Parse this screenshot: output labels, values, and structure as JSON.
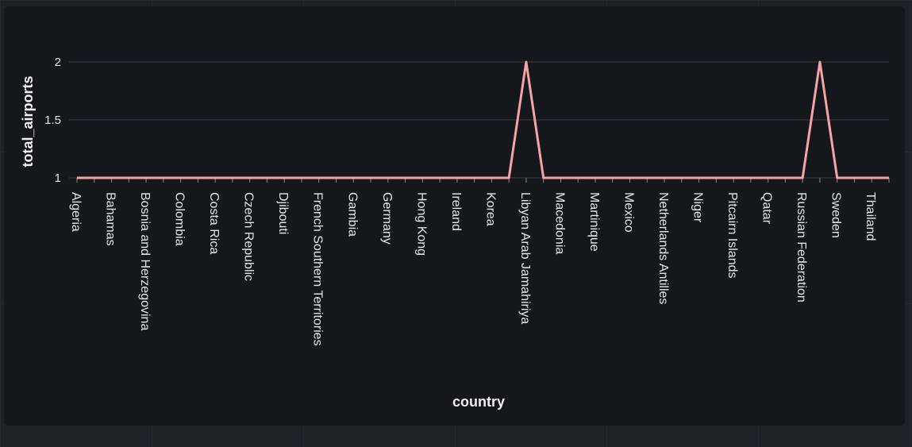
{
  "chart_data": {
    "type": "line",
    "xlabel": "country",
    "ylabel": "total_airports",
    "ylim": [
      1,
      2
    ],
    "y_ticks": [
      "1",
      "1.5",
      "2"
    ],
    "grid": true,
    "legend": "none",
    "line_color": "#f4a3a5",
    "categories": [
      "Algeria",
      "",
      "Bahamas",
      "",
      "Bosnia and Herzegovina",
      "",
      "Colombia",
      "",
      "Costa Rica",
      "",
      "Czech Republic",
      "",
      "Djibouti",
      "",
      "French Southern Territories",
      "",
      "Gambia",
      "",
      "Germany",
      "",
      "Hong Kong",
      "",
      "Ireland",
      "",
      "Korea",
      "",
      "Libyan Arab Jamahiriya",
      "",
      "Macedonia",
      "",
      "Martinique",
      "",
      "Mexico",
      "",
      "Netherlands Antilles",
      "",
      "Niger",
      "",
      "Pitcairn Islands",
      "",
      "Qatar",
      "",
      "Russian Federation",
      "",
      "Sweden",
      "",
      "Thailand",
      ""
    ],
    "values": [
      1,
      1,
      1,
      1,
      1,
      1,
      1,
      1,
      1,
      1,
      1,
      1,
      1,
      1,
      1,
      1,
      1,
      1,
      1,
      1,
      1,
      1,
      1,
      1,
      1,
      1,
      2,
      1,
      1,
      1,
      1,
      1,
      1,
      1,
      1,
      1,
      1,
      1,
      1,
      1,
      1,
      1,
      1,
      2,
      1,
      1,
      1,
      1
    ]
  }
}
